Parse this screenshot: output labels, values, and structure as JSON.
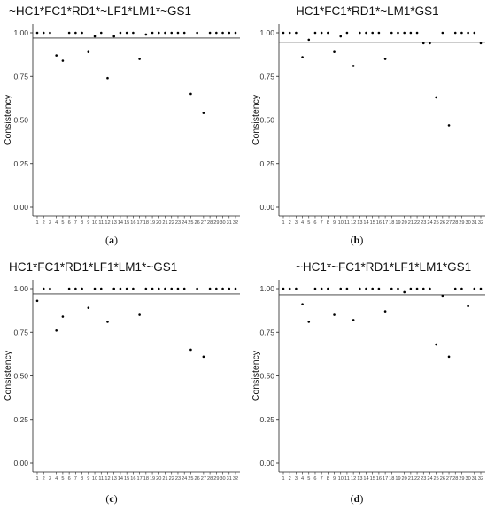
{
  "chart_data": [
    {
      "type": "scatter",
      "title": "~HC1*FC1*RD1*~LF1*LM1*~GS1",
      "caption_letter": "a",
      "ylabel": "Consistency",
      "xlabel": "",
      "ylim": [
        0,
        1
      ],
      "yticks": [
        "0.00",
        "0.25",
        "0.50",
        "0.75",
        "1.00"
      ],
      "threshold": 0.97,
      "x": [
        1,
        2,
        3,
        4,
        5,
        6,
        7,
        8,
        9,
        10,
        11,
        12,
        13,
        14,
        15,
        16,
        17,
        18,
        19,
        20,
        21,
        22,
        23,
        24,
        25,
        26,
        27,
        28,
        29,
        30,
        31,
        32
      ],
      "y": [
        1,
        1,
        1,
        0.87,
        0.84,
        1,
        1,
        1,
        0.89,
        0.98,
        1,
        0.74,
        0.98,
        1,
        1,
        1,
        0.85,
        0.99,
        1,
        1,
        1,
        1,
        1,
        1,
        0.65,
        1,
        0.54,
        1,
        1,
        1,
        1,
        1
      ]
    },
    {
      "type": "scatter",
      "title": "HC1*FC1*RD1*~LM1*GS1",
      "caption_letter": "b",
      "ylabel": "Consistency",
      "xlabel": "",
      "ylim": [
        0,
        1
      ],
      "yticks": [
        "0.00",
        "0.25",
        "0.50",
        "0.75",
        "1.00"
      ],
      "threshold": 0.945,
      "x": [
        1,
        2,
        3,
        4,
        5,
        6,
        7,
        8,
        9,
        10,
        11,
        12,
        13,
        14,
        15,
        16,
        17,
        18,
        19,
        20,
        21,
        22,
        23,
        24,
        25,
        26,
        27,
        28,
        29,
        30,
        31,
        32
      ],
      "y": [
        1,
        1,
        1,
        0.86,
        0.96,
        1,
        1,
        1,
        0.89,
        0.98,
        1,
        0.81,
        1,
        1,
        1,
        1,
        0.85,
        1,
        1,
        1,
        1,
        1,
        0.94,
        0.94,
        0.63,
        1,
        0.47,
        1,
        1,
        1,
        1,
        0.94
      ]
    },
    {
      "type": "scatter",
      "title": "HC1*FC1*RD1*LF1*LM1*~GS1",
      "caption_letter": "c",
      "ylabel": "Consistency",
      "xlabel": "",
      "ylim": [
        0,
        1
      ],
      "yticks": [
        "0.00",
        "0.25",
        "0.50",
        "0.75",
        "1.00"
      ],
      "threshold": 0.97,
      "x": [
        1,
        2,
        3,
        4,
        5,
        6,
        7,
        8,
        9,
        10,
        11,
        12,
        13,
        14,
        15,
        16,
        17,
        18,
        19,
        20,
        21,
        22,
        23,
        24,
        25,
        26,
        27,
        28,
        29,
        30,
        31,
        32
      ],
      "y": [
        0.93,
        1,
        1,
        0.76,
        0.84,
        1,
        1,
        1,
        0.89,
        1,
        1,
        0.81,
        1,
        1,
        1,
        1,
        0.85,
        1,
        1,
        1,
        1,
        1,
        1,
        1,
        0.65,
        1,
        0.61,
        1,
        1,
        1,
        1,
        1
      ]
    },
    {
      "type": "scatter",
      "title": "~HC1*~FC1*RD1*LF1*LM1*GS1",
      "caption_letter": "d",
      "ylabel": "Consistency",
      "xlabel": "",
      "ylim": [
        0,
        1
      ],
      "yticks": [
        "0.00",
        "0.25",
        "0.50",
        "0.75",
        "1.00"
      ],
      "threshold": 0.965,
      "x": [
        1,
        2,
        3,
        4,
        5,
        6,
        7,
        8,
        9,
        10,
        11,
        12,
        13,
        14,
        15,
        16,
        17,
        18,
        19,
        20,
        21,
        22,
        23,
        24,
        25,
        26,
        27,
        28,
        29,
        30,
        31,
        32
      ],
      "y": [
        1,
        1,
        1,
        0.91,
        0.81,
        1,
        1,
        1,
        0.85,
        1,
        1,
        0.82,
        1,
        1,
        1,
        1,
        0.87,
        1,
        1,
        0.98,
        1,
        1,
        1,
        1,
        0.68,
        0.96,
        0.61,
        1,
        1,
        0.9,
        1,
        1
      ]
    }
  ]
}
